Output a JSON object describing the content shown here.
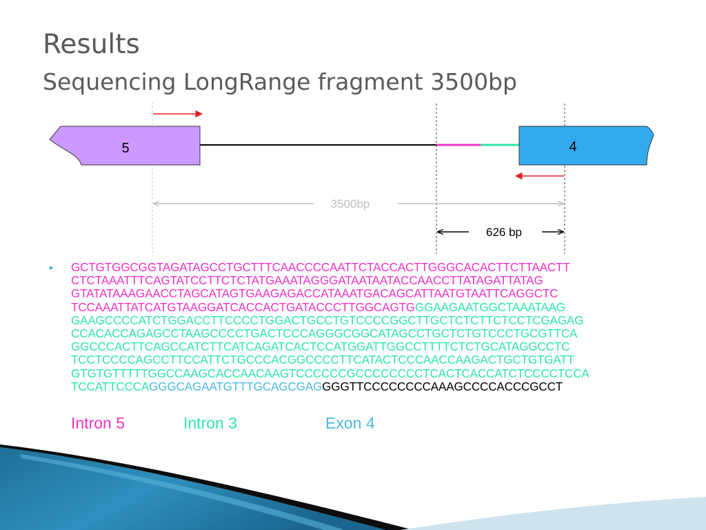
{
  "slide": {
    "title": "Results",
    "subtitle": "Sequencing LongRange fragment 3500bp"
  },
  "diagram": {
    "exon_left_label": "5",
    "exon_right_label": "4",
    "span_label": "3500bp",
    "sub_span_label": "626 bp"
  },
  "sequence": {
    "bullet": "▸",
    "lines": [
      [
        {
          "text": "GCTGTGGCGGTAGATAGCCTGCTTTCAACCCCAATTCTACCACTTGGGCACACTTCTTAACTT",
          "region": "intron5"
        }
      ],
      [
        {
          "text": "CTCTAAATTTCAGTATCCTTCTCTATGAAATAGGGATAATAATACCAACCTTATAGATTATAG",
          "region": "intron5"
        }
      ],
      [
        {
          "text": "GTATATAAAGAACCTAGCATAGTGAAGAGACCATAAATGACAGCATTAATGTAATTCAGGCTC",
          "region": "intron5"
        }
      ],
      [
        {
          "text": "TCCAAATTATCATGTAAGGATCACCACTGATACCCTTGGCAGTG",
          "region": "intron5"
        },
        {
          "text": "GGAAGAATGGCTAAATAAG",
          "region": "intron3"
        }
      ],
      [
        {
          "text": "GAAGCCCCATCTGGACCTTCCCCTGGACTGCCTGTCCCCGGCTTGCTCTCTTCTCCTCGAGAG",
          "region": "intron3"
        }
      ],
      [
        {
          "text": "CCACACCAGAGCCTAAGCCCCTGACTCCCAGGGCGGCATAGCCTGCTCTGTCCCTGCGTTCA",
          "region": "intron3"
        }
      ],
      [
        {
          "text": "GGCCCACTTCAGCCATCTTCATCAGATCACTCCATGGATTGGCCTTTTCTCTGCATAGGCCTC",
          "region": "intron3"
        }
      ],
      [
        {
          "text": "TCCTCCCCAGCCTTCCATTCTGCCCACGGCCCCTTCATACTCCCAACCAAGACTGCTGTGATT",
          "region": "intron3"
        }
      ],
      [
        {
          "text": "GTGTGTTTTTGGCCAAGCACCAACAAGTCCCCCCGCCCCCCCCTCACTCACCATCTCCCCTCCA",
          "region": "intron3"
        }
      ],
      [
        {
          "text": "TCCATTCCCA",
          "region": "intron3"
        },
        {
          "text": "GGGCAGAATGTTTGCAGCGAG",
          "region": "exon4"
        },
        {
          "text": "GGGTTCCCCCCCCAAAGCCCCACCCGCCT",
          "region": "other"
        }
      ]
    ]
  },
  "legend": [
    {
      "label": "Intron 5",
      "region": "intron5"
    },
    {
      "label": "Intron 3",
      "region": "intron3"
    },
    {
      "label": "Exon 4",
      "region": "exon4"
    }
  ],
  "colors": {
    "title": "#595959",
    "intron5": "#f033c8",
    "intron3": "#2ee8a4",
    "exon4": "#4db8e0",
    "other": "#000000",
    "exon_left_fill": "#cc99ff",
    "exon_right_fill": "#33aaee",
    "primer_arrow": "#e02020",
    "span_gray": "#bfbfbf",
    "bullet": "#2aa7c9"
  }
}
